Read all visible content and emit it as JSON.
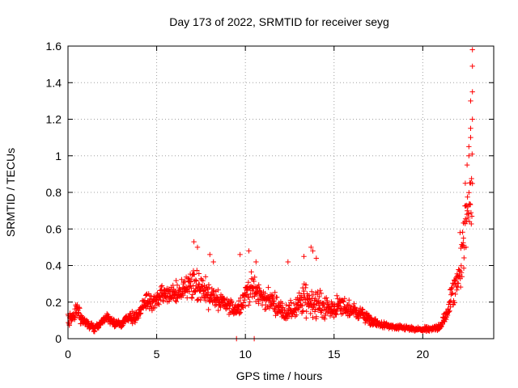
{
  "chart_data": {
    "type": "scatter",
    "title": "Day 173 of 2022, SRMTID for receiver seyg",
    "xlabel": "GPS time / hours",
    "ylabel": "SRMTID / TECUs",
    "xlim": [
      0,
      24
    ],
    "ylim": [
      0,
      1.6
    ],
    "xticks": [
      0,
      5,
      10,
      15,
      20
    ],
    "xtick_labels": [
      "0",
      "5",
      "10",
      "15",
      "20"
    ],
    "yticks": [
      0,
      0.2,
      0.4,
      0.6,
      0.8,
      1.0,
      1.2,
      1.4,
      1.6
    ],
    "ytick_labels": [
      "0",
      "0.2",
      "0.4",
      "0.6",
      "0.8",
      "1",
      "1.2",
      "1.4",
      "1.6"
    ],
    "grid": true,
    "marker": "+",
    "color": "#ff0000",
    "series": [
      {
        "name": "SRMTID",
        "profile": {
          "x": [
            0.0,
            0.3,
            0.5,
            0.8,
            1.2,
            1.5,
            1.8,
            2.2,
            2.6,
            3.0,
            3.5,
            3.9,
            4.3,
            4.8,
            5.3,
            6.0,
            6.6,
            7.1,
            7.6,
            8.0,
            8.5,
            9.0,
            9.5,
            9.8,
            10.2,
            10.6,
            11.0,
            11.6,
            12.2,
            12.8,
            13.4,
            13.8,
            14.3,
            14.8,
            15.3,
            15.9,
            16.5,
            17.0,
            17.5,
            18.0,
            18.5,
            19.0,
            19.5,
            20.0,
            20.5,
            21.0,
            21.3,
            21.6,
            21.9,
            22.2,
            22.4,
            22.6,
            22.8
          ],
          "y": [
            0.1,
            0.12,
            0.16,
            0.1,
            0.08,
            0.06,
            0.08,
            0.12,
            0.08,
            0.08,
            0.12,
            0.12,
            0.2,
            0.2,
            0.24,
            0.24,
            0.28,
            0.32,
            0.26,
            0.24,
            0.2,
            0.18,
            0.16,
            0.2,
            0.28,
            0.26,
            0.22,
            0.2,
            0.14,
            0.16,
            0.22,
            0.2,
            0.18,
            0.16,
            0.18,
            0.16,
            0.14,
            0.1,
            0.08,
            0.07,
            0.06,
            0.06,
            0.05,
            0.05,
            0.05,
            0.07,
            0.12,
            0.22,
            0.3,
            0.45,
            0.6,
            0.75,
            0.9
          ],
          "spread": [
            0.05,
            0.06,
            0.08,
            0.04,
            0.03,
            0.03,
            0.03,
            0.04,
            0.03,
            0.03,
            0.04,
            0.05,
            0.07,
            0.06,
            0.08,
            0.08,
            0.1,
            0.14,
            0.12,
            0.1,
            0.08,
            0.06,
            0.06,
            0.1,
            0.12,
            0.1,
            0.08,
            0.08,
            0.06,
            0.08,
            0.14,
            0.12,
            0.1,
            0.08,
            0.08,
            0.07,
            0.05,
            0.04,
            0.03,
            0.02,
            0.02,
            0.02,
            0.02,
            0.02,
            0.02,
            0.03,
            0.06,
            0.12,
            0.14,
            0.2,
            0.25,
            0.3,
            0.4
          ]
        },
        "outliers": [
          [
            7.1,
            0.53
          ],
          [
            7.3,
            0.5
          ],
          [
            8.0,
            0.46
          ],
          [
            8.2,
            0.42
          ],
          [
            9.7,
            0.46
          ],
          [
            10.2,
            0.48
          ],
          [
            10.6,
            0.42
          ],
          [
            13.3,
            0.45
          ],
          [
            13.7,
            0.5
          ],
          [
            13.8,
            0.48
          ],
          [
            14.0,
            0.44
          ],
          [
            12.4,
            0.42
          ],
          [
            9.5,
            0.0
          ],
          [
            10.5,
            0.0
          ],
          [
            22.4,
            0.85
          ],
          [
            22.5,
            0.95
          ],
          [
            22.6,
            1.0
          ],
          [
            22.6,
            1.05
          ],
          [
            22.7,
            1.1
          ],
          [
            22.7,
            1.15
          ],
          [
            22.8,
            1.2
          ],
          [
            22.7,
            1.3
          ],
          [
            22.8,
            1.35
          ],
          [
            22.8,
            1.49
          ],
          [
            22.8,
            1.58
          ],
          [
            22.3,
            0.55
          ],
          [
            22.1,
            0.58
          ]
        ]
      }
    ]
  }
}
